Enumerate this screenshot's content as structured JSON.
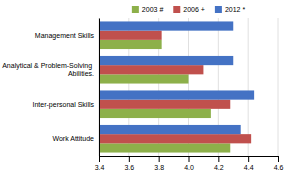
{
  "chart_data": {
    "type": "bar",
    "orientation": "horizontal",
    "categories": [
      "Work Attitude",
      "Inter-personal Skills",
      "Analytical & Problem-Solving\nAbilities.",
      "Management Skills"
    ],
    "series": [
      {
        "name": "2003 #",
        "color": "#8db04a",
        "values": [
          4.28,
          4.15,
          4.0,
          3.82
        ]
      },
      {
        "name": "2006 +",
        "color": "#c0504d",
        "values": [
          4.42,
          4.28,
          4.1,
          3.82
        ]
      },
      {
        "name": "2012 *",
        "color": "#4472c4",
        "values": [
          4.35,
          4.44,
          4.3,
          4.3
        ]
      }
    ],
    "xlim": [
      3.4,
      4.6
    ],
    "xticks": [
      3.4,
      3.6,
      3.8,
      {
        "value": 4.0,
        "label": "4.0"
      },
      4.2,
      4.4,
      4.6
    ],
    "grid": true,
    "legend": "top"
  }
}
